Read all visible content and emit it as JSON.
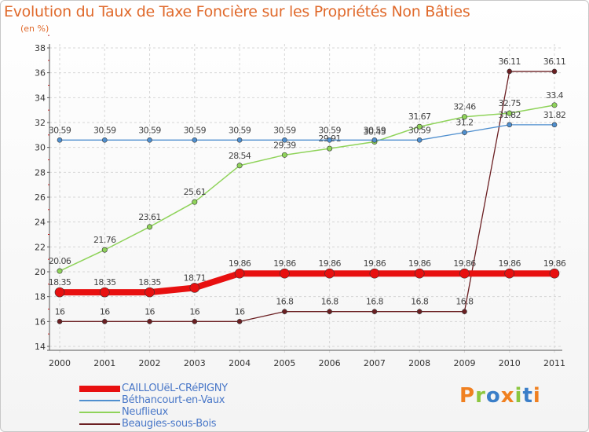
{
  "title": "Evolution du Taux de Taxe Foncière sur les Propriétés Non Bâties",
  "subtitle": "(en %)",
  "logo": {
    "text": "Proxiti",
    "colors": [
      "#f08020",
      "#8cc63f",
      "#3a7ec8",
      "#f08020",
      "#8cc63f",
      "#3a7ec8",
      "#f08020"
    ]
  },
  "chart_data": {
    "type": "line",
    "title": "Evolution du Taux de Taxe Foncière sur les Propriétés Non Bâties",
    "ylabel": "(en %)",
    "xlabel": "",
    "ylim": [
      14,
      38
    ],
    "yticks": [
      14,
      16,
      18,
      20,
      22,
      24,
      26,
      28,
      30,
      32,
      34,
      36,
      38
    ],
    "x": [
      2000,
      2001,
      2002,
      2003,
      2004,
      2005,
      2006,
      2007,
      2008,
      2009,
      2010,
      2011
    ],
    "grid": true,
    "legend": "bottom-left",
    "series": [
      {
        "name": "Beaugies-sous-Bois",
        "color": "#6b1f22",
        "width": 1.3,
        "marker": 3,
        "values": [
          16,
          16,
          16,
          16,
          16,
          16.8,
          16.8,
          16.8,
          16.8,
          16.8,
          36.11,
          36.11
        ],
        "labels": [
          "16",
          "16",
          "16",
          "16",
          "16",
          "16.8",
          "16.8",
          "16.8",
          "16.8",
          "16.8",
          "36.11",
          "36.11"
        ]
      },
      {
        "name": "Neuflieux",
        "color": "#8fd35a",
        "width": 1.5,
        "marker": 3.2,
        "values": [
          20.06,
          21.76,
          23.61,
          25.61,
          28.54,
          29.39,
          29.91,
          30.45,
          31.67,
          32.46,
          32.75,
          33.4
        ],
        "labels": [
          "20.06",
          "21.76",
          "23.61",
          "25.61",
          "28.54",
          "29.39",
          "29.91",
          "30.45",
          "31.67",
          "32.46",
          "32.75",
          "33.4"
        ]
      },
      {
        "name": "Béthancourt-en-Vaux",
        "color": "#4f8fcf",
        "width": 1.3,
        "marker": 3,
        "values": [
          30.59,
          30.59,
          30.59,
          30.59,
          30.59,
          30.59,
          30.59,
          30.59,
          30.59,
          31.2,
          31.82,
          31.82
        ],
        "labels": [
          "30.59",
          "30.59",
          "30.59",
          "30.59",
          "30.59",
          "30.59",
          "30.59",
          "30.59",
          "30.59",
          "31.2",
          "31.82",
          "31.82"
        ]
      },
      {
        "name": "CAILLOUëL-CRéPIGNY",
        "color": "#e81010",
        "width": 8,
        "marker": 6,
        "values": [
          18.35,
          18.35,
          18.35,
          18.71,
          19.86,
          19.86,
          19.86,
          19.86,
          19.86,
          19.86,
          19.86,
          19.86
        ],
        "labels": [
          "18.35",
          "18.35",
          "18.35",
          "18.71",
          "19.86",
          "19.86",
          "19.86",
          "19.86",
          "19.86",
          "19.86",
          "19.86",
          "19.86"
        ]
      }
    ],
    "legend_order": [
      "CAILLOUëL-CRéPIGNY",
      "Béthancourt-en-Vaux",
      "Neuflieux",
      "Beaugies-sous-Bois"
    ]
  }
}
